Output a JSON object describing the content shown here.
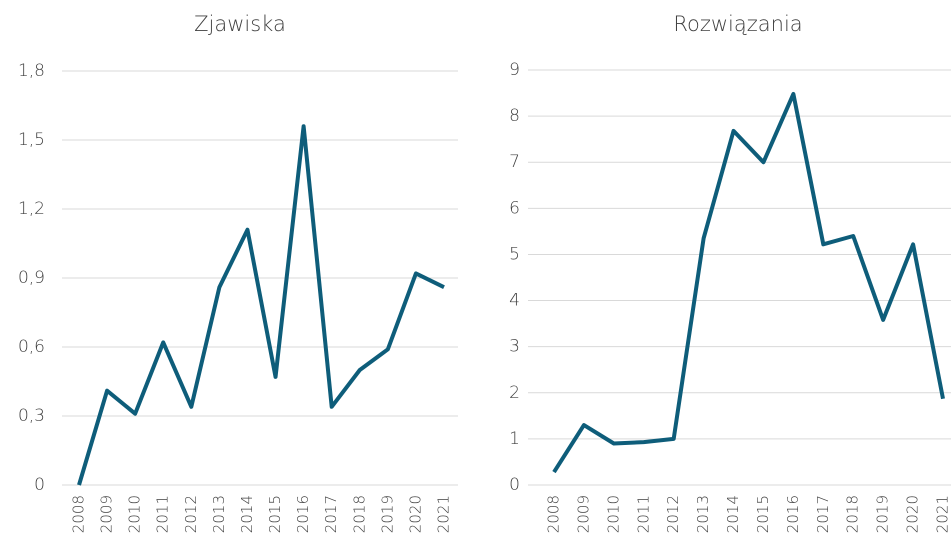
{
  "chart_data": [
    {
      "type": "line",
      "title": "Zjawiska",
      "categories": [
        "2008",
        "2009",
        "2010",
        "2011",
        "2012",
        "2013",
        "2014",
        "2015",
        "2016",
        "2017",
        "2018",
        "2019",
        "2020",
        "2021"
      ],
      "series": [
        {
          "color": "#0e5d7a",
          "values": [
            0,
            0.41,
            0.31,
            0.62,
            0.34,
            0.86,
            1.11,
            0.47,
            1.56,
            0.34,
            0.5,
            0.59,
            0.92,
            0.86
          ]
        }
      ],
      "ylim": [
        0,
        1.8
      ],
      "yticks": [
        0,
        {
          "value": 0.3,
          "label": "0,3"
        },
        {
          "value": 0.6,
          "label": "0,6"
        },
        {
          "value": 0.9,
          "label": "0,9"
        },
        {
          "value": 1.2,
          "label": "1,2"
        },
        {
          "value": 1.5,
          "label": "1,5"
        },
        {
          "value": 1.8,
          "label": "1,8"
        }
      ],
      "grid": true
    },
    {
      "type": "line",
      "title": "Rozwiązania",
      "categories": [
        "2008",
        "2009",
        "2010",
        "2011",
        "2012",
        "2013",
        "2014",
        "2015",
        "2016",
        "2017",
        "2018",
        "2019",
        "2020",
        "2021"
      ],
      "series": [
        {
          "color": "#0e5d7a",
          "values": [
            0.28,
            1.3,
            0.9,
            0.93,
            1.0,
            5.35,
            7.68,
            7.0,
            8.48,
            5.22,
            5.4,
            3.58,
            5.22,
            1.87
          ]
        }
      ],
      "ylim": [
        0,
        9
      ],
      "yticks": [
        0,
        1,
        2,
        3,
        4,
        5,
        6,
        7,
        8,
        9
      ],
      "grid": true
    }
  ]
}
